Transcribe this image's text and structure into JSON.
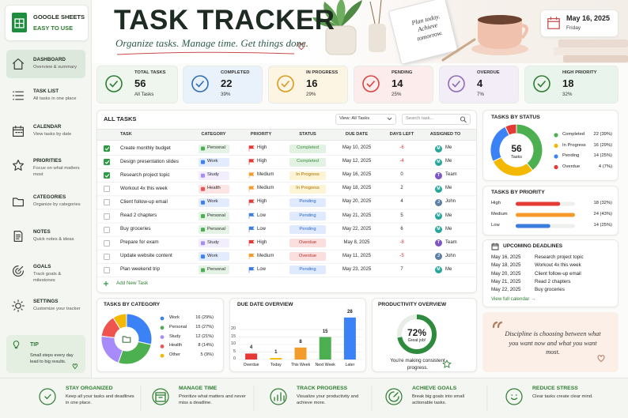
{
  "sidebar": {
    "brand": "GOOGLE SHEETS",
    "tagline": "EASY TO USE",
    "nav": [
      {
        "title": "DASHBOARD",
        "desc": "Overview & summary"
      },
      {
        "title": "TASK LIST",
        "desc": "All tasks in one place"
      },
      {
        "title": "CALENDAR",
        "desc": "View tasks by date"
      },
      {
        "title": "PRIORITIES",
        "desc": "Focus on what matters most"
      },
      {
        "title": "CATEGORIES",
        "desc": "Organize by categories"
      },
      {
        "title": "NOTES",
        "desc": "Quick notes & ideas"
      },
      {
        "title": "GOALS",
        "desc": "Track goals & milestones"
      },
      {
        "title": "SETTINGS",
        "desc": "Customize your tracker"
      }
    ],
    "tip": {
      "title": "TIP",
      "text": "Small steps every day lead to big results."
    }
  },
  "header": {
    "title": "TASK TRACKER",
    "subtitle": "Organize tasks. Manage time. Get things done.",
    "notebook": "Plan today. Achieve tomorrow.",
    "date": "May 16, 2025",
    "weekday": "Friday"
  },
  "kpis": [
    {
      "label": "TOTAL TASKS",
      "value": 56,
      "note": "All Tasks",
      "color": "#2e7d32",
      "bg": "#eef6ee"
    },
    {
      "label": "COMPLETED",
      "value": 22,
      "note": "39%",
      "color": "#2f6fb5",
      "bg": "#e9f1fa"
    },
    {
      "label": "IN PROGRESS",
      "value": 16,
      "note": "29%",
      "color": "#d99a1e",
      "bg": "#fdf5e3"
    },
    {
      "label": "PENDING",
      "value": 14,
      "note": "25%",
      "color": "#d9443f",
      "bg": "#fcecec"
    },
    {
      "label": "OVERDUE",
      "value": 4,
      "note": "7%",
      "color": "#8e6bb8",
      "bg": "#f2edf7"
    },
    {
      "label": "HIGH PRIORITY",
      "value": 18,
      "note": "32%",
      "color": "#2e7d32",
      "bg": "#e9f4ec"
    }
  ],
  "table": {
    "title": "ALL TASKS",
    "view": "View: All Tasks",
    "search": "Search task...",
    "columns": [
      "TASK",
      "CATEGORY",
      "PRIORITY",
      "STATUS",
      "DUE DATE",
      "DAYS LEFT",
      "ASSIGNED TO"
    ],
    "rows": [
      {
        "done": true,
        "task": "Create monthly budget",
        "category": "Personal",
        "priority": "High",
        "status": "Completed",
        "due": "May 10, 2025",
        "days_left": -6,
        "avatar": "M",
        "assigned": "Me"
      },
      {
        "done": true,
        "task": "Design presentation slides",
        "category": "Work",
        "priority": "High",
        "status": "Completed",
        "due": "May 12, 2025",
        "days_left": -4,
        "avatar": "M",
        "assigned": "Me"
      },
      {
        "done": true,
        "task": "Research project topic",
        "category": "Study",
        "priority": "Medium",
        "status": "In Progress",
        "due": "May 16, 2025",
        "days_left": 0,
        "avatar": "T",
        "assigned": "Team"
      },
      {
        "done": false,
        "task": "Workout 4x this week",
        "category": "Health",
        "priority": "Medium",
        "status": "In Progress",
        "due": "May 18, 2025",
        "days_left": 2,
        "avatar": "M",
        "assigned": "Me"
      },
      {
        "done": false,
        "task": "Client follow-up email",
        "category": "Work",
        "priority": "High",
        "status": "Pending",
        "due": "May 20, 2025",
        "days_left": 4,
        "avatar": "J",
        "assigned": "John"
      },
      {
        "done": false,
        "task": "Read 2 chapters",
        "category": "Personal",
        "priority": "Low",
        "status": "Pending",
        "due": "May 21, 2025",
        "days_left": 5,
        "avatar": "M",
        "assigned": "Me"
      },
      {
        "done": false,
        "task": "Buy groceries",
        "category": "Personal",
        "priority": "Low",
        "status": "Pending",
        "due": "May 22, 2025",
        "days_left": 6,
        "avatar": "M",
        "assigned": "Me"
      },
      {
        "done": false,
        "task": "Prepare for exam",
        "category": "Study",
        "priority": "High",
        "status": "Overdue",
        "due": "May 8, 2025",
        "days_left": -8,
        "avatar": "T",
        "assigned": "Team"
      },
      {
        "done": false,
        "task": "Update website content",
        "category": "Work",
        "priority": "Medium",
        "status": "Overdue",
        "due": "May 11, 2025",
        "days_left": -5,
        "avatar": "J",
        "assigned": "John"
      },
      {
        "done": false,
        "task": "Plan weekend trip",
        "category": "Personal",
        "priority": "Low",
        "status": "Pending",
        "due": "May 23, 2025",
        "days_left": 7,
        "avatar": "M",
        "assigned": "Me"
      }
    ],
    "add": "Add New Task"
  },
  "chart_data": [
    {
      "type": "donut",
      "title": "TASKS BY STATUS",
      "total": 56,
      "total_label": "Tasks",
      "categories": [
        "Completed",
        "In Progress",
        "Pending",
        "Overdue"
      ],
      "values": [
        22,
        16,
        14,
        4
      ],
      "value_labels": [
        "22 (39%)",
        "16 (29%)",
        "14 (25%)",
        "4 (7%)"
      ],
      "colors": [
        "#4caf50",
        "#f5b800",
        "#3b82f6",
        "#e53935"
      ]
    },
    {
      "type": "hbar",
      "title": "TASKS BY PRIORITY",
      "categories": [
        "High",
        "Medium",
        "Low"
      ],
      "values": [
        18,
        24,
        14
      ],
      "value_labels": [
        "18 (32%)",
        "24 (43%)",
        "14 (25%)"
      ],
      "colors": [
        "#e53935",
        "#f39c2c",
        "#3b7ddd"
      ]
    },
    {
      "type": "donut",
      "title": "TASKS BY CATEGORY",
      "categories": [
        "Work",
        "Personal",
        "Study",
        "Health",
        "Other"
      ],
      "values": [
        16,
        15,
        12,
        8,
        5
      ],
      "value_labels": [
        "16 (29%)",
        "15 (27%)",
        "12 (21%)",
        "8 (14%)",
        "5 (9%)"
      ],
      "colors": [
        "#3b82f6",
        "#4caf50",
        "#a78bfa",
        "#ef5350",
        "#f5b800"
      ]
    },
    {
      "type": "bar",
      "title": "DUE DATE OVERVIEW",
      "categories": [
        "Overdue",
        "Today",
        "This Week",
        "Next Week",
        "Later"
      ],
      "values": [
        4,
        1,
        8,
        15,
        28
      ],
      "colors": [
        "#e53935",
        "#f5b800",
        "#f39c2c",
        "#4caf50",
        "#3b82f6"
      ],
      "ylim": [
        0,
        30
      ],
      "yticks": [
        0,
        5,
        10,
        15,
        20
      ]
    },
    {
      "type": "gauge",
      "title": "PRODUCTIVITY OVERVIEW",
      "value": 72,
      "value_label": "72%",
      "ylim": [
        0,
        100
      ],
      "color": "#2e8b3e",
      "note": "Great job!",
      "caption": "You're making consistent progress."
    }
  ],
  "deadlines": {
    "title": "UPCOMING DEADLINES",
    "items": [
      {
        "date": "May 16, 2025",
        "task": "Research project topic"
      },
      {
        "date": "May 18, 2025",
        "task": "Workout 4x this week"
      },
      {
        "date": "May 20, 2025",
        "task": "Client follow-up email"
      },
      {
        "date": "May 21, 2025",
        "task": "Read 2 chapters"
      },
      {
        "date": "May 22, 2025",
        "task": "Buy groceries"
      }
    ],
    "link": "View full calendar →"
  },
  "quote": {
    "text": "Discipline is choosing between what you want now and what you want most."
  },
  "footer": {
    "items": [
      {
        "title": "STAY ORGANIZED",
        "text": "Keep all your tasks and deadlines in one place."
      },
      {
        "title": "MANAGE TIME",
        "text": "Prioritize what matters and never miss a deadline."
      },
      {
        "title": "TRACK PROGRESS",
        "text": "Visualize your productivity and achieve more."
      },
      {
        "title": "ACHIEVE GOALS",
        "text": "Break big goals into small actionable tasks."
      },
      {
        "title": "REDUCE STRESS",
        "text": "Clear tasks create clear mind."
      }
    ]
  }
}
